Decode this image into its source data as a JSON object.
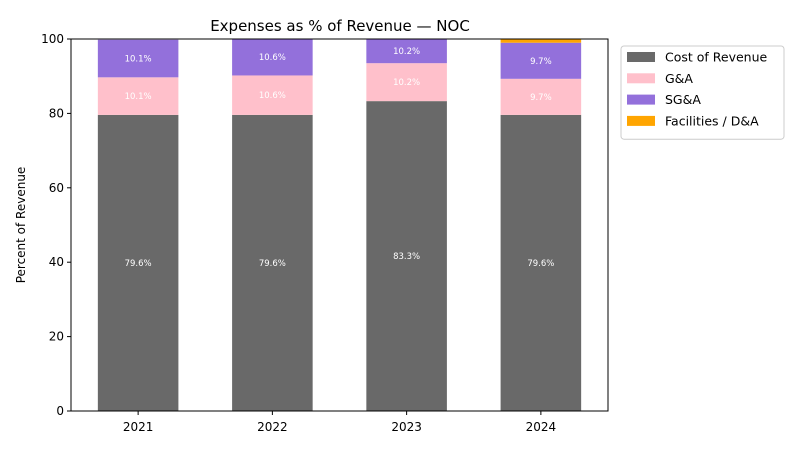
{
  "chart_data": {
    "type": "bar",
    "stacked": true,
    "title": "Expenses as % of Revenue — NOC",
    "xlabel": "",
    "ylabel": "Percent of Revenue",
    "ylim": [
      0,
      100
    ],
    "yticks": [
      0,
      20,
      40,
      60,
      80,
      100
    ],
    "categories": [
      "2021",
      "2022",
      "2023",
      "2024"
    ],
    "series": [
      {
        "name": "Cost of Revenue",
        "color": "#696969",
        "values": [
          79.6,
          79.6,
          83.3,
          79.6
        ],
        "labels": [
          "79.6%",
          "79.6%",
          "83.3%",
          "79.6%"
        ]
      },
      {
        "name": "G&A",
        "color": "#ffc0cb",
        "values": [
          10.1,
          10.6,
          10.2,
          9.7
        ],
        "labels": [
          "10.1%",
          "10.6%",
          "10.2%",
          "9.7%"
        ]
      },
      {
        "name": "SG&A",
        "color": "#9370db",
        "values": [
          10.1,
          10.6,
          10.2,
          9.7
        ],
        "labels": [
          "10.1%",
          "10.6%",
          "10.2%",
          "9.7%"
        ]
      },
      {
        "name": "Facilities / D&A",
        "color": "#ffa500",
        "values": [
          0,
          0,
          0,
          1.0
        ],
        "labels": [
          "",
          "",
          "",
          ""
        ]
      }
    ],
    "legend_position": "outside top-right",
    "grid": false
  }
}
